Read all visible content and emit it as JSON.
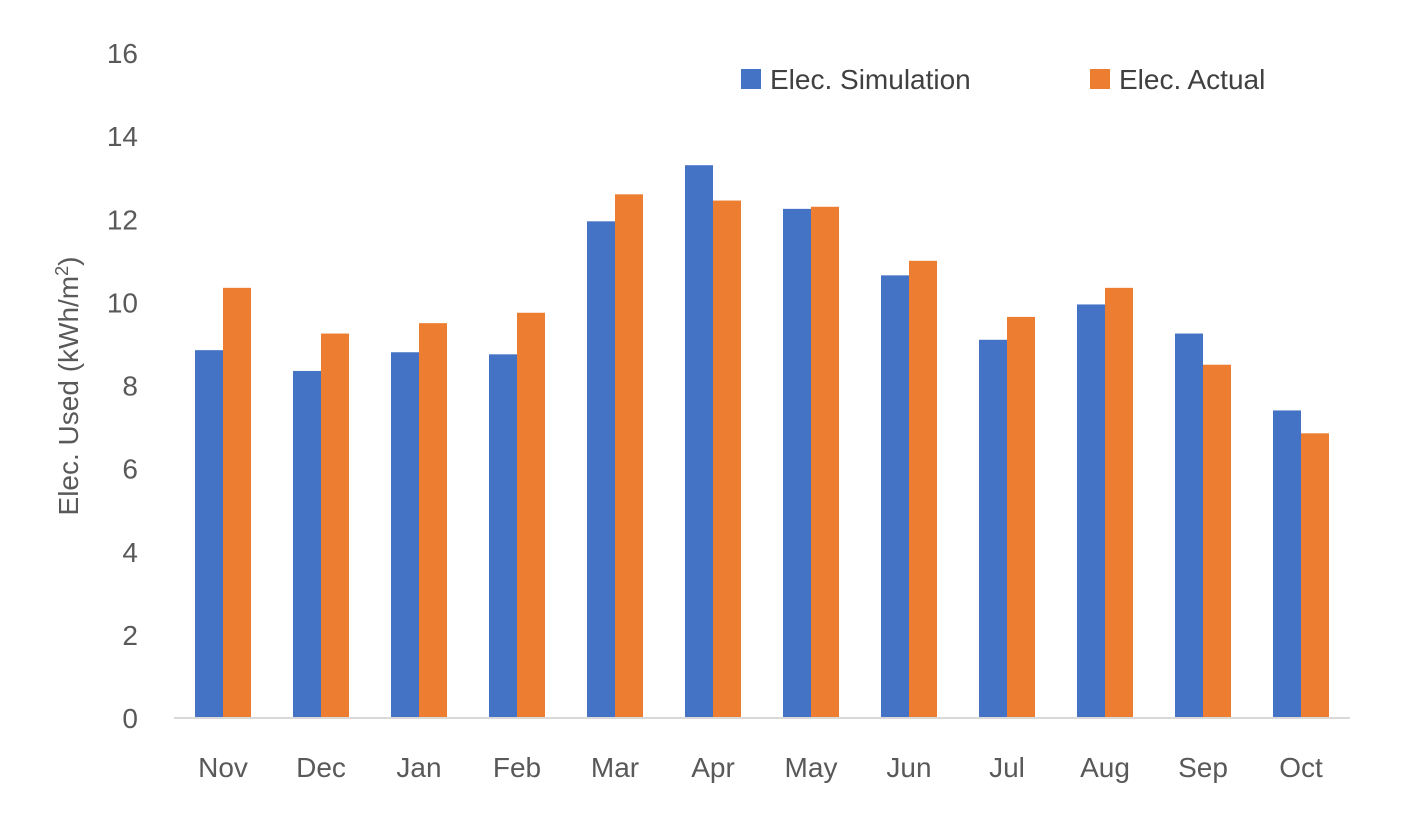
{
  "chart_data": {
    "type": "bar",
    "title": "",
    "xlabel": "",
    "ylabel": "Elec. Used (kWh/m",
    "ylabel_superscript": "2",
    "ylabel_suffix": ")",
    "ylim": [
      0,
      16
    ],
    "yticks": [
      "0",
      "2",
      "4",
      "6",
      "8",
      "10",
      "12",
      "14",
      "16"
    ],
    "grid": false,
    "legend_position": "top-right",
    "categories": [
      "Nov",
      "Dec",
      "Jan",
      "Feb",
      "Mar",
      "Apr",
      "May",
      "Jun",
      "Jul",
      "Aug",
      "Sep",
      "Oct"
    ],
    "series": [
      {
        "name": "Elec. Simulation",
        "color": "#4472C4",
        "values": [
          8.85,
          8.35,
          8.8,
          8.75,
          11.95,
          13.3,
          12.25,
          10.65,
          9.1,
          9.95,
          9.25,
          7.4
        ]
      },
      {
        "name": "Elec. Actual",
        "color": "#ED7D31",
        "values": [
          10.35,
          9.25,
          9.5,
          9.75,
          12.6,
          12.45,
          12.3,
          11.0,
          9.65,
          10.35,
          8.5,
          6.85
        ]
      }
    ],
    "axis_color": "#D9D9D9"
  }
}
